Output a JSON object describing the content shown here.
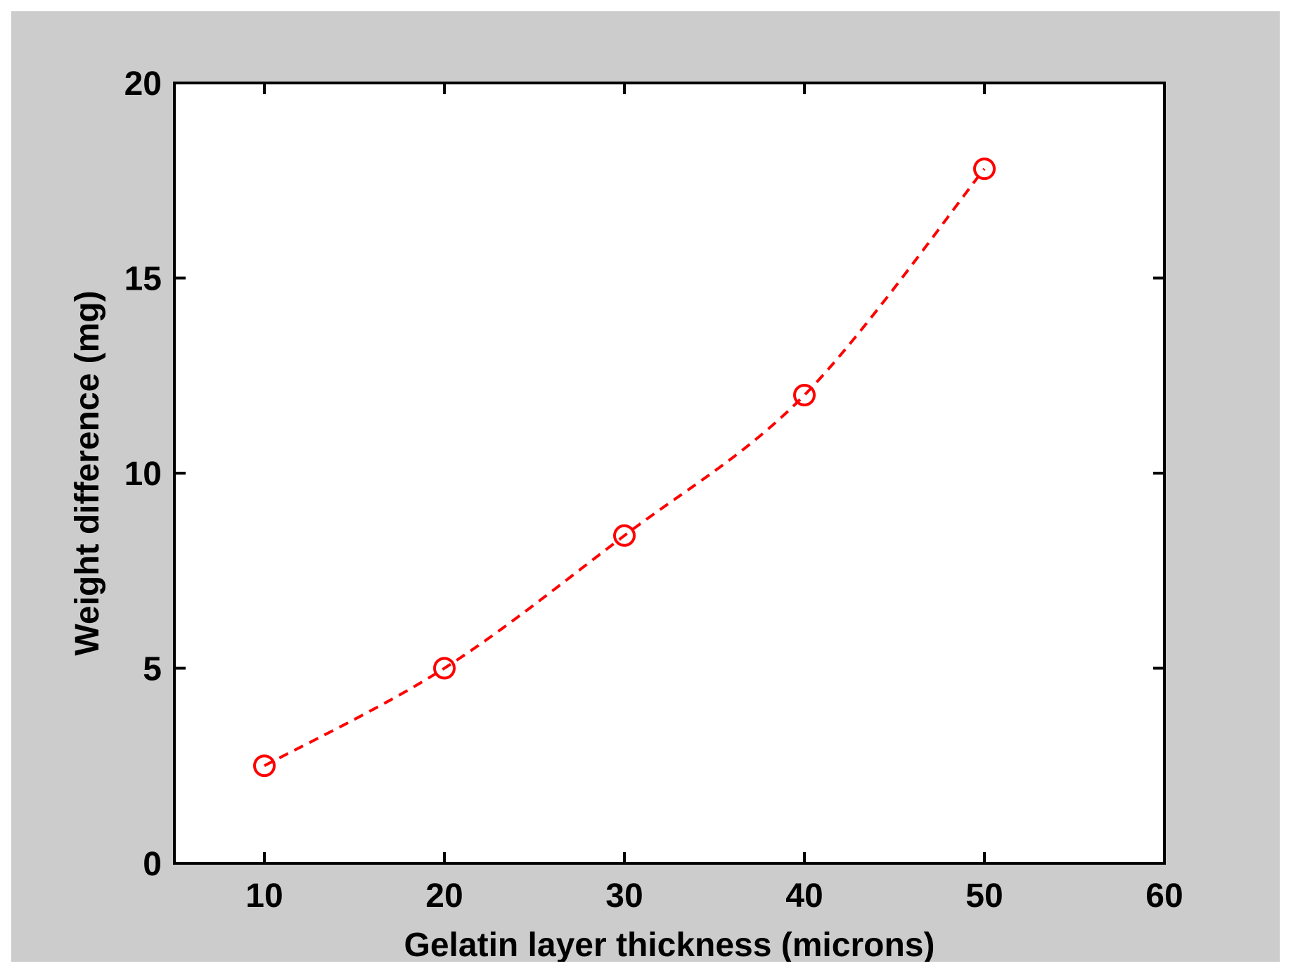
{
  "chart_data": {
    "type": "line",
    "title": "",
    "xlabel": "Gelatin layer thickness (microns)",
    "ylabel": "Weight difference (mg)",
    "xlim": [
      5,
      60
    ],
    "ylim": [
      0,
      20
    ],
    "xticks": [
      10,
      20,
      30,
      40,
      50,
      60
    ],
    "yticks": [
      0,
      5,
      10,
      15,
      20
    ],
    "xtick_labels": [
      "10",
      "20",
      "30",
      "40",
      "50",
      "60"
    ],
    "ytick_labels": [
      "0",
      "5",
      "10",
      "15",
      "20"
    ],
    "grid": false,
    "legend": "none",
    "series": [
      {
        "x": [
          10,
          20,
          30,
          40,
          50
        ],
        "values": [
          2.5,
          5.0,
          8.4,
          12.0,
          17.8
        ],
        "color": "#ff0000",
        "line_style": "dashed",
        "marker": "circle-open"
      }
    ],
    "colors": {
      "figure_background": "#cccccc",
      "axes_background": "#ffffff",
      "series": "#ff0000"
    }
  }
}
